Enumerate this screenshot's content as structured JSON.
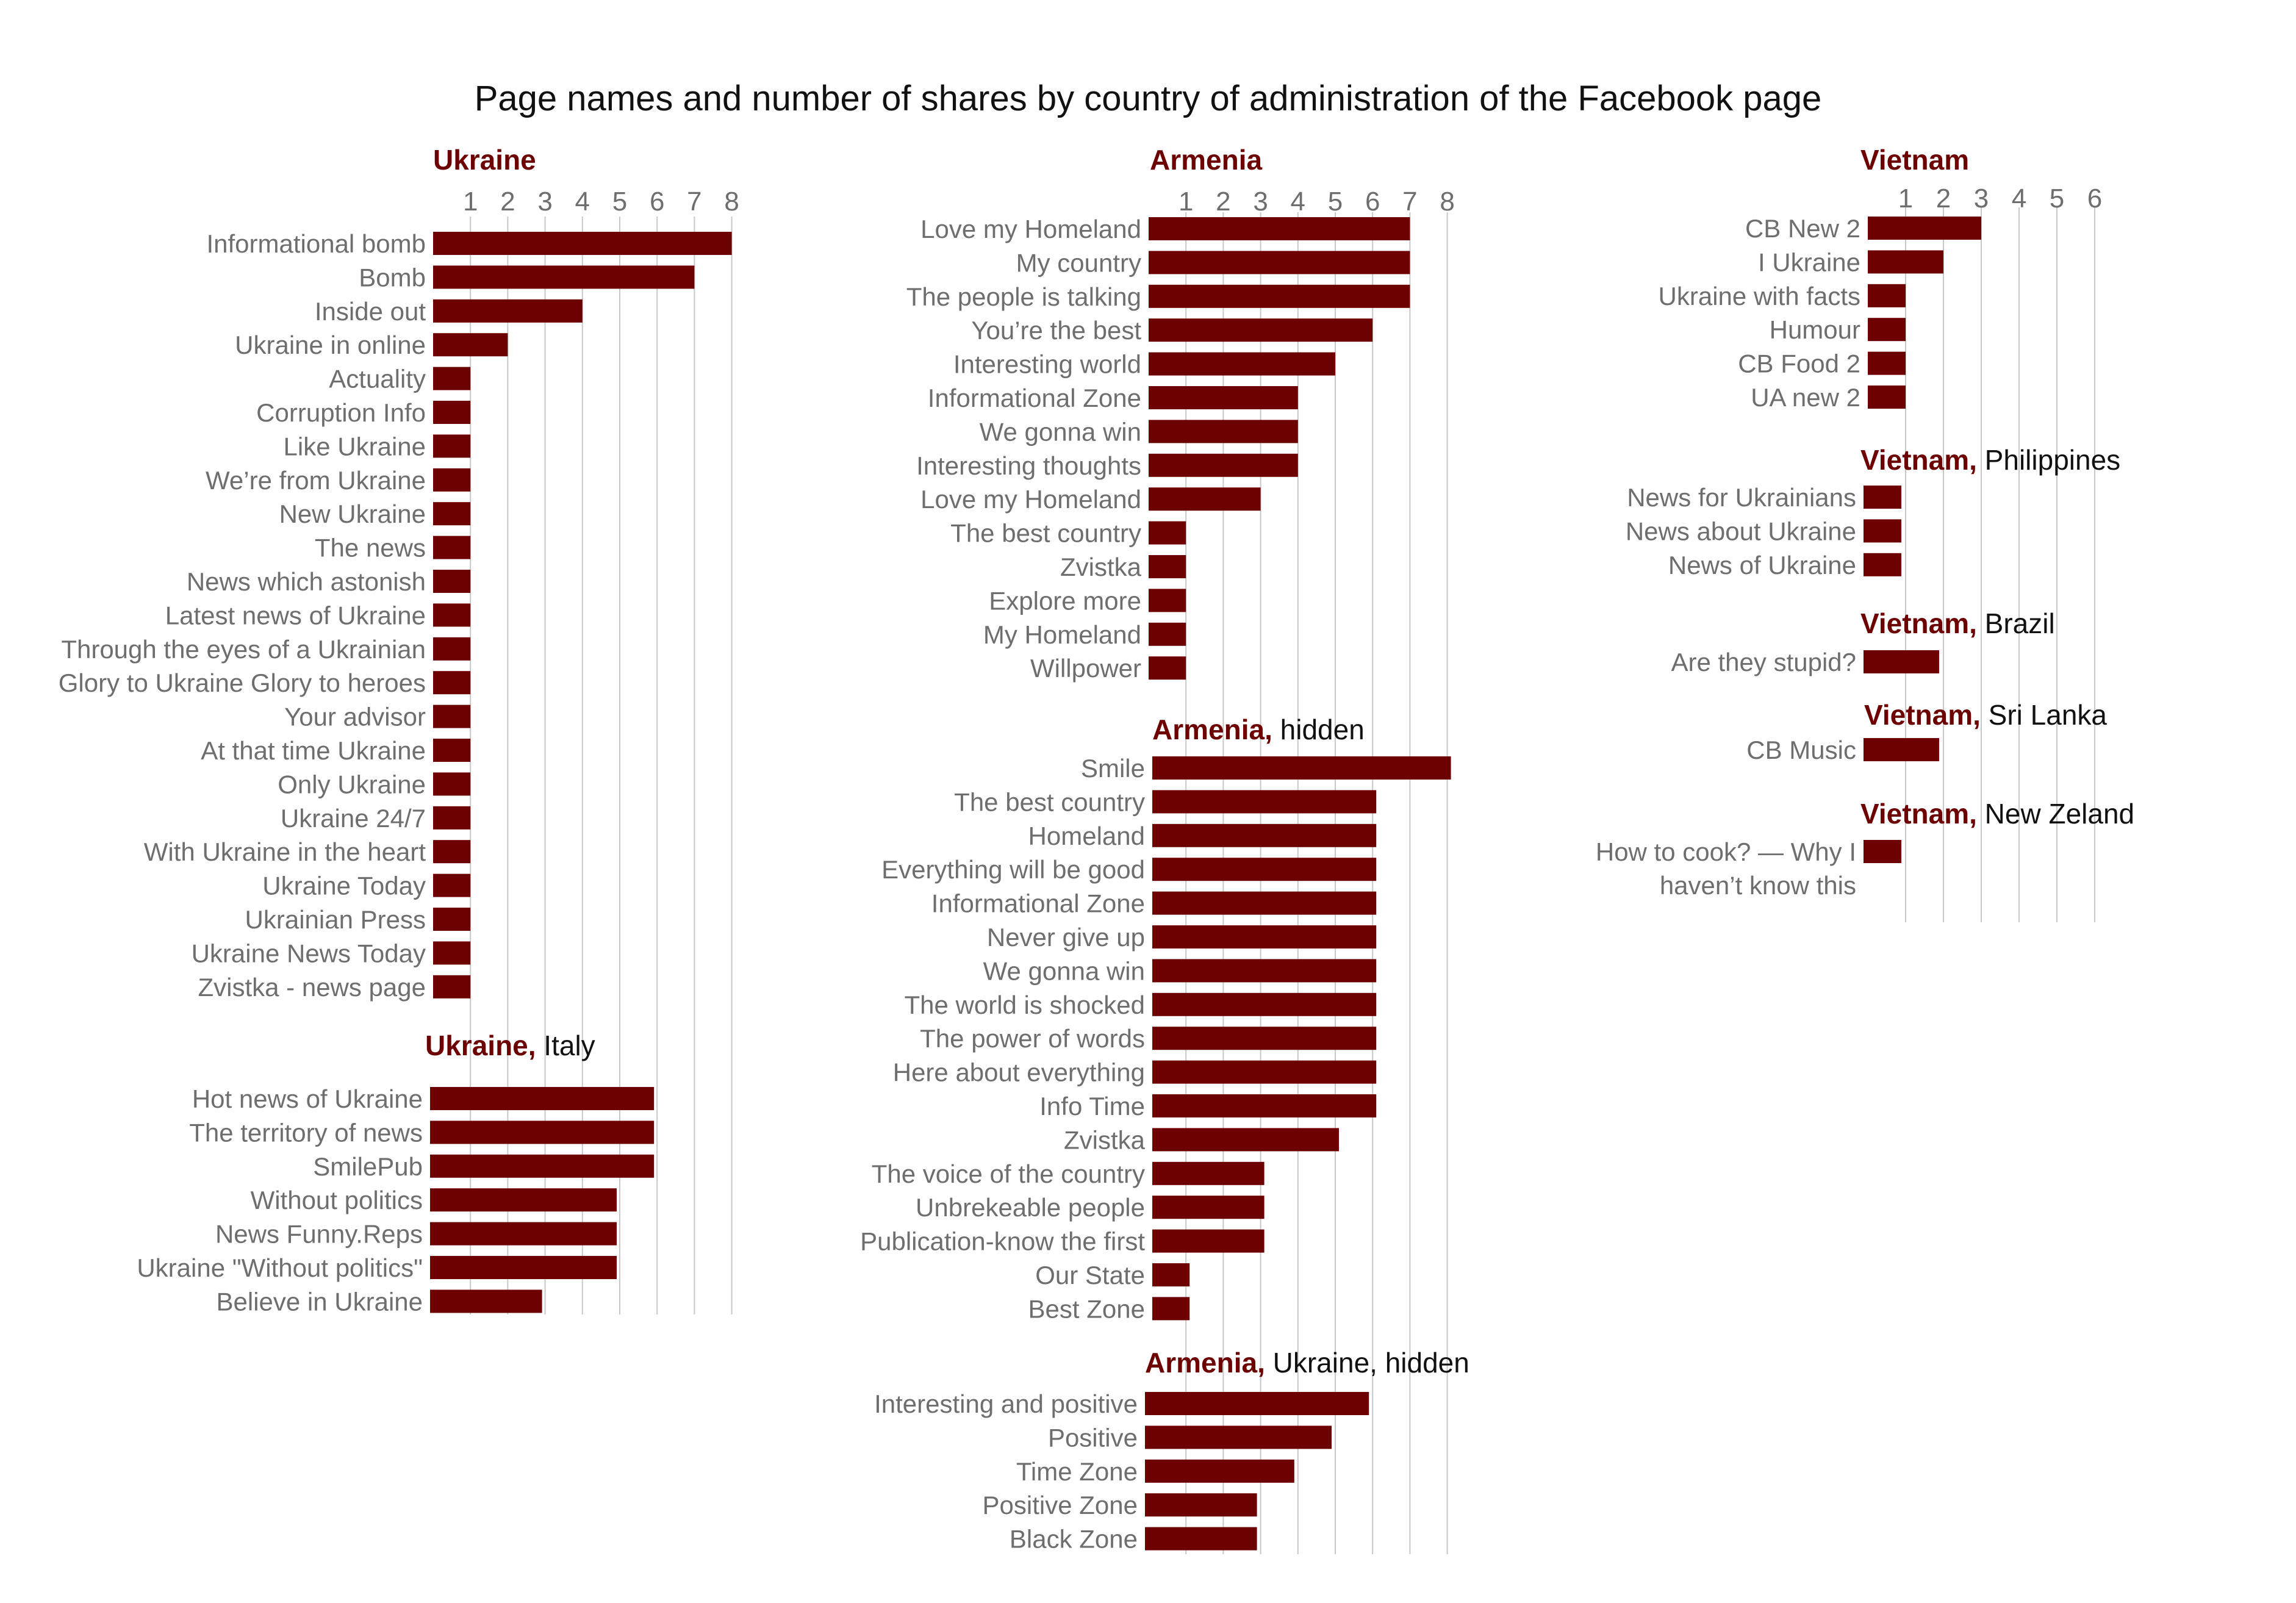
{
  "title": "Page names and number of shares by country of administration of the Facebook page",
  "colors": {
    "bar": "#6d0000",
    "country": "#6d0000",
    "label": "#6e6e6e",
    "grid": "#c8c8c8",
    "suffix": "#111111"
  },
  "chart_data": [
    {
      "type": "bar",
      "orientation": "horizontal",
      "country": "Ukraine",
      "suffix": "",
      "ticks": [
        1,
        2,
        3,
        4,
        5,
        6,
        7,
        8
      ],
      "categories": [
        "Informational bomb",
        "Bomb",
        "Inside out",
        "Ukraine in online",
        "Actuality",
        "Corruption Info",
        "Like Ukraine",
        "We’re from Ukraine",
        "New Ukraine",
        "The news",
        "News which astonish",
        "Latest news of Ukraine",
        "Through the eyes of a Ukrainian",
        "Glory to Ukraine Glory to heroes",
        "Your advisor",
        "At that time Ukraine",
        "Only Ukraine",
        "Ukraine 24/7",
        "With Ukraine in the heart",
        "Ukraine Today",
        "Ukrainian Press",
        "Ukraine News Today",
        "Zvistka - news page"
      ],
      "values": [
        8,
        7,
        4,
        2,
        1,
        1,
        1,
        1,
        1,
        1,
        1,
        1,
        1,
        1,
        1,
        1,
        1,
        1,
        1,
        1,
        1,
        1,
        1
      ]
    },
    {
      "type": "bar",
      "orientation": "horizontal",
      "country": "Ukraine,",
      "suffix": "Italy",
      "categories": [
        "Hot news of Ukraine",
        "The territory of news",
        "SmilePub",
        "Without politics",
        "News Funny.Reps",
        "Ukraine \"Without politics\"",
        "Believe in Ukraine"
      ],
      "values": [
        6,
        6,
        6,
        5,
        5,
        5,
        3
      ]
    },
    {
      "type": "bar",
      "orientation": "horizontal",
      "country": "Armenia",
      "suffix": "",
      "ticks": [
        1,
        2,
        3,
        4,
        5,
        6,
        7,
        8
      ],
      "categories": [
        "Love my Homeland",
        "My country",
        "The people is talking",
        "You’re the best",
        "Interesting world",
        "Informational Zone",
        "We gonna win",
        "Interesting thoughts",
        "Love my Homeland",
        "The best country",
        "Zvistka",
        "Explore more",
        "My Homeland",
        "Willpower"
      ],
      "values": [
        7,
        7,
        7,
        6,
        5,
        4,
        4,
        4,
        3,
        1,
        1,
        1,
        1,
        1
      ]
    },
    {
      "type": "bar",
      "orientation": "horizontal",
      "country": "Armenia,",
      "suffix": "hidden",
      "categories": [
        "Smile",
        "The best country",
        "Homeland",
        "Everything will be good",
        "Informational Zone",
        "Never give up",
        "We gonna win",
        "The world is shocked",
        "The power of words",
        "Here about everything",
        "Info Time",
        "Zvistka",
        "The voice of the country",
        "Unbrekeable people",
        "Publication-know the first",
        "Our State",
        "Best Zone"
      ],
      "values": [
        8,
        6,
        6,
        6,
        6,
        6,
        6,
        6,
        6,
        6,
        6,
        5,
        3,
        3,
        3,
        1,
        1
      ]
    },
    {
      "type": "bar",
      "orientation": "horizontal",
      "country": "Armenia,",
      "suffix": "Ukraine, hidden",
      "categories": [
        "Interesting and positive",
        "Positive",
        "Time Zone",
        "Positive Zone",
        "Black Zone"
      ],
      "values": [
        6,
        5,
        4,
        3,
        3
      ]
    },
    {
      "type": "bar",
      "orientation": "horizontal",
      "country": "Vietnam",
      "suffix": "",
      "ticks": [
        1,
        2,
        3,
        4,
        5,
        6
      ],
      "categories": [
        "CB New 2",
        "I Ukraine",
        "Ukraine with facts",
        "Humour",
        "CB Food 2",
        "UA new 2"
      ],
      "values": [
        3,
        2,
        1,
        1,
        1,
        1
      ]
    },
    {
      "type": "bar",
      "orientation": "horizontal",
      "country": "Vietnam,",
      "suffix": "Philippines",
      "categories": [
        "News for Ukrainians",
        "News about Ukraine",
        "News of Ukraine"
      ],
      "values": [
        1,
        1,
        1
      ]
    },
    {
      "type": "bar",
      "orientation": "horizontal",
      "country": "Vietnam,",
      "suffix": "Brazil",
      "categories": [
        "Are they stupid?"
      ],
      "values": [
        2
      ]
    },
    {
      "type": "bar",
      "orientation": "horizontal",
      "country": "Vietnam,",
      "suffix": "Sri Lanka",
      "categories": [
        "CB Music"
      ],
      "values": [
        2
      ]
    },
    {
      "type": "bar",
      "orientation": "horizontal",
      "country": "Vietnam,",
      "suffix": "New Zeland",
      "categories": [
        "How to cook? — Why I haven’t know this"
      ],
      "values": [
        1
      ]
    }
  ]
}
